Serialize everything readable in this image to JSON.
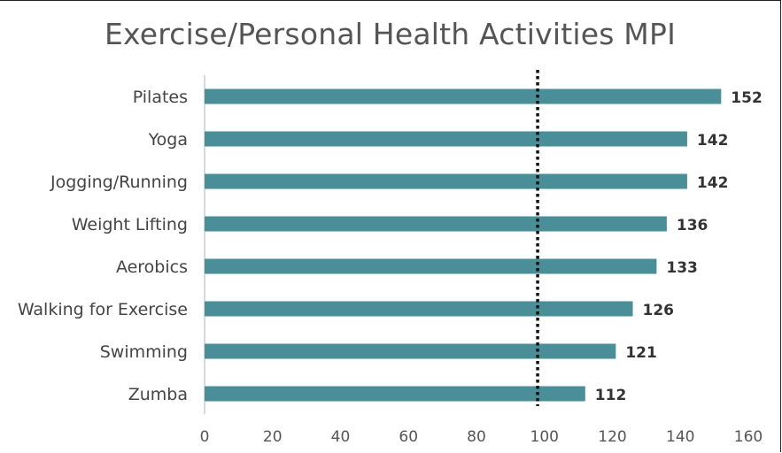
{
  "chart_data": {
    "type": "bar",
    "orientation": "horizontal",
    "title": "Exercise/Personal Health Activities MPI",
    "categories": [
      "Pilates",
      "Yoga",
      "Jogging/Running",
      "Weight Lifting",
      "Aerobics",
      "Walking for Exercise",
      "Swimming",
      "Zumba"
    ],
    "values": [
      152,
      142,
      142,
      136,
      133,
      126,
      121,
      112
    ],
    "value_labels": [
      "152",
      "142",
      "142",
      "136",
      "133",
      "126",
      "121",
      "112"
    ],
    "xlim": [
      0,
      160
    ],
    "xticks": [
      0,
      20,
      40,
      60,
      80,
      100,
      120,
      140,
      160
    ],
    "xtick_labels": [
      "0",
      "20",
      "40",
      "60",
      "80",
      "100",
      "120",
      "140",
      "160"
    ],
    "reference_line": {
      "value": 98,
      "style": "dotted"
    },
    "grid": false,
    "legend": "none",
    "colors": {
      "bar": "#4a8f98",
      "reference": "#111111",
      "axis": "#cccccc"
    }
  }
}
